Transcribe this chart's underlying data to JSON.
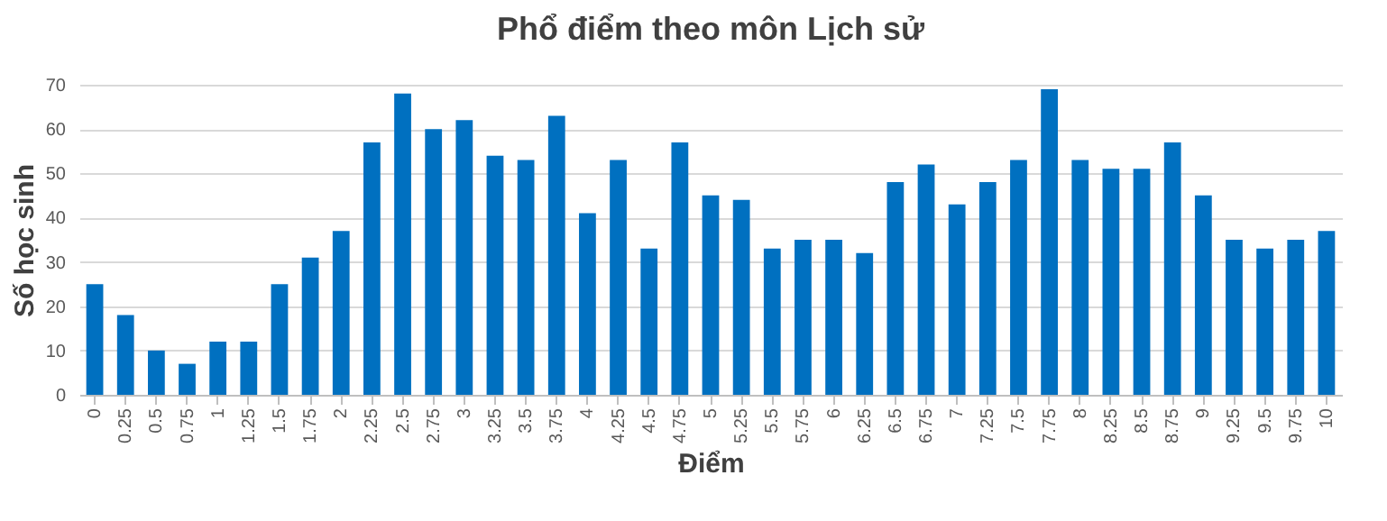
{
  "chart_data": {
    "type": "bar",
    "title": "Phổ điểm theo môn Lịch sử",
    "xlabel": "Điểm",
    "ylabel": "Số học sinh",
    "categories": [
      "0",
      "0.25",
      "0.5",
      "0.75",
      "1",
      "1.25",
      "1.5",
      "1.75",
      "2",
      "2.25",
      "2.5",
      "2.75",
      "3",
      "3.25",
      "3.5",
      "3.75",
      "4",
      "4.25",
      "4.5",
      "4.75",
      "5",
      "5.25",
      "5.5",
      "5.75",
      "6",
      "6.25",
      "6.5",
      "6.75",
      "7",
      "7.25",
      "7.5",
      "7.75",
      "8",
      "8.25",
      "8.5",
      "8.75",
      "9",
      "9.25",
      "9.5",
      "9.75",
      "10"
    ],
    "values": [
      25,
      18,
      10,
      7,
      12,
      12,
      25,
      31,
      37,
      57,
      68,
      60,
      62,
      54,
      53,
      63,
      41,
      53,
      33,
      57,
      45,
      44,
      33,
      35,
      35,
      32,
      48,
      52,
      43,
      48,
      53,
      69,
      53,
      51,
      51,
      57,
      45,
      35,
      33,
      35,
      37
    ],
    "color": "#0070c0",
    "ylim": [
      0,
      70
    ],
    "yticks": [
      0,
      10,
      20,
      30,
      40,
      50,
      60,
      70
    ],
    "grid": true
  }
}
